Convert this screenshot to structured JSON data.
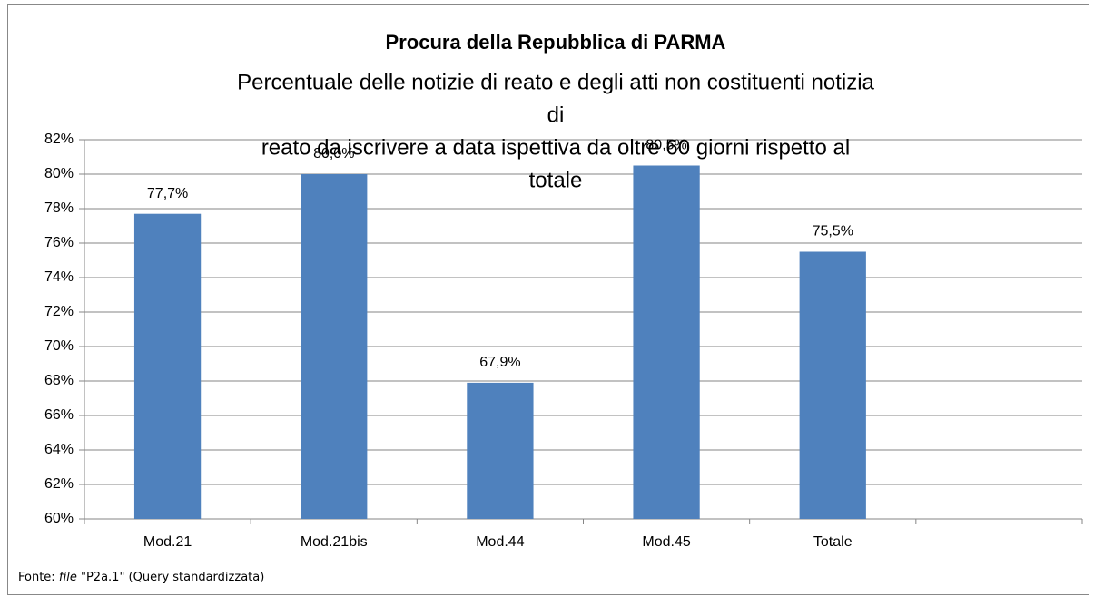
{
  "chart_data": {
    "type": "bar",
    "title": "Procura della Repubblica di PARMA",
    "subtitle": [
      "Percentuale delle notizie di reato e degli atti non costituenti notizia",
      "di",
      "reato da iscrivere a data ispettiva da oltre 60 giorni rispetto al",
      "totale"
    ],
    "categories": [
      "Mod.21",
      "Mod.21bis",
      "Mod.44",
      "Mod.45",
      "Totale",
      null
    ],
    "values": [
      77.7,
      80.0,
      67.9,
      80.5,
      75.5,
      null
    ],
    "value_labels": [
      "77,7%",
      "80,0%",
      "67,9%",
      "80,5%",
      "75,5%",
      null
    ],
    "color": "#4f81bd",
    "ylim": [
      60,
      82
    ],
    "yticks": [
      {
        "value": 60,
        "label": "60%"
      },
      {
        "value": 62,
        "label": "62%"
      },
      {
        "value": 64,
        "label": "64%"
      },
      {
        "value": 66,
        "label": "66%"
      },
      {
        "value": 68,
        "label": "68%"
      },
      {
        "value": 70,
        "label": "70%"
      },
      {
        "value": 72,
        "label": "72%"
      },
      {
        "value": 74,
        "label": "74%"
      },
      {
        "value": 76,
        "label": "76%"
      },
      {
        "value": 78,
        "label": "78%"
      },
      {
        "value": 80,
        "label": "80%"
      },
      {
        "value": 82,
        "label": "82%"
      }
    ],
    "grid": true,
    "source": {
      "prefix": "Fonte:",
      "file": "file",
      "rest": "\"P2a.1\" (Query standardizzata)"
    }
  }
}
